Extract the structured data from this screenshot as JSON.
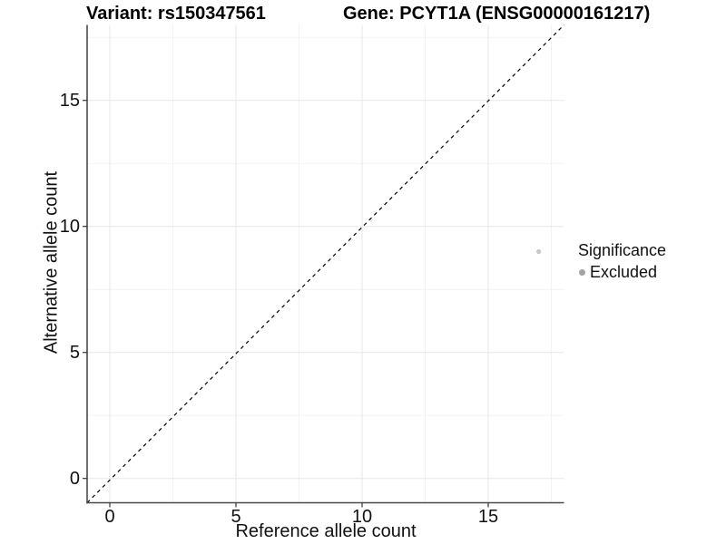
{
  "title": {
    "variant": "Variant: rs150347561",
    "gene": "Gene: PCYT1A (ENSG00000161217)"
  },
  "axes": {
    "x": {
      "label": "Reference allele count",
      "ticks": [
        "0",
        "5",
        "10",
        "15"
      ]
    },
    "y": {
      "label": "Alternative allele count",
      "ticks": [
        "0",
        "5",
        "10",
        "15"
      ]
    }
  },
  "legend": {
    "title": "Significance",
    "items": [
      {
        "label": "Excluded",
        "color": "#a3a3a3"
      }
    ]
  },
  "colors": {
    "background": "#ffffff",
    "grid_major": "#e7e7e7",
    "grid_minor": "#f3f3f3",
    "axis_line": "#4a4a4a",
    "tick_mark": "#333333",
    "point": "#c8c8c8",
    "reference_line": "#000000",
    "text": "#000000"
  },
  "chart_data": {
    "type": "scatter",
    "title": "Variant: rs150347561   Gene: PCYT1A (ENSG00000161217)",
    "xlabel": "Reference allele count",
    "ylabel": "Alternative allele count",
    "xlim": [
      -0.9,
      18.0
    ],
    "ylim": [
      -0.9,
      18.0
    ],
    "x_major_ticks": [
      0,
      5,
      10,
      15
    ],
    "x_minor_ticks": [
      2.5,
      7.5,
      12.5,
      17.5
    ],
    "y_major_ticks": [
      0,
      5,
      10,
      15
    ],
    "y_minor_ticks": [
      2.5,
      7.5,
      12.5,
      17.5
    ],
    "grid": true,
    "legend_position": "right",
    "reference_line": {
      "type": "identity y=x",
      "style": "dashed",
      "color": "#000000"
    },
    "series": [
      {
        "name": "Excluded",
        "color": "#c8c8c8",
        "points": [
          {
            "x": 17,
            "y": 9
          }
        ]
      }
    ]
  }
}
